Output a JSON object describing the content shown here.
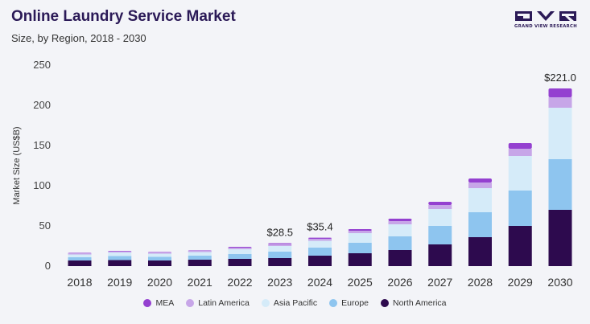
{
  "header": {
    "title": "Online Laundry Service Market",
    "subtitle": "Size, by Region, 2018 - 2030"
  },
  "logo": {
    "text": "GRAND VIEW RESEARCH",
    "color": "#2b1a57"
  },
  "chart_data": {
    "type": "bar",
    "stacked": true,
    "categories": [
      "2018",
      "2019",
      "2020",
      "2021",
      "2022",
      "2023",
      "2024",
      "2025",
      "2026",
      "2027",
      "2028",
      "2029",
      "2030"
    ],
    "ylabel": "Market Size (US$B)",
    "xlabel": "",
    "ylim": [
      0,
      250
    ],
    "yticks": [
      0,
      50,
      100,
      150,
      200,
      250
    ],
    "grid": false,
    "legend_position": "bottom",
    "series": [
      {
        "name": "North America",
        "color": "#2d0a4e",
        "values": [
          7,
          7.5,
          7,
          8,
          9,
          10,
          13,
          16,
          20,
          27,
          36,
          50,
          70
        ]
      },
      {
        "name": "Europe",
        "color": "#8ec5ef",
        "values": [
          4,
          5,
          4.5,
          5,
          6,
          8,
          10,
          13,
          17,
          23,
          31,
          44,
          63
        ]
      },
      {
        "name": "Asia Pacific",
        "color": "#d5ebf9",
        "values": [
          3.5,
          4.5,
          4,
          4.5,
          6,
          7,
          8.5,
          12,
          15,
          21,
          30,
          43,
          64
        ]
      },
      {
        "name": "Latin America",
        "color": "#c7a6e8",
        "values": [
          1.5,
          1.5,
          1.5,
          1.5,
          2,
          2.5,
          2.5,
          3,
          4,
          5,
          7,
          9,
          13
        ]
      },
      {
        "name": "MEA",
        "color": "#9440d0",
        "values": [
          0.5,
          0.5,
          0.5,
          0.5,
          1,
          1,
          1.4,
          2,
          3,
          4,
          5,
          7,
          11
        ]
      }
    ],
    "annotations": [
      {
        "category": "2023",
        "label": "$28.5"
      },
      {
        "category": "2024",
        "label": "$35.4"
      },
      {
        "category": "2030",
        "label": "$221.0"
      }
    ]
  }
}
